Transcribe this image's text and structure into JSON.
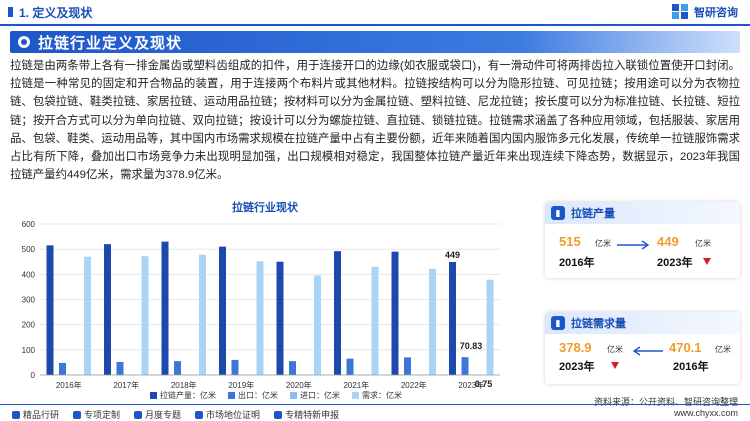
{
  "header": {
    "section_title": "1. 定义及现状",
    "brand": "智研咨询"
  },
  "banner": {
    "title": "拉链行业定义及现状"
  },
  "paragraph": "拉链是由两条带上各有一排金属齿或塑料齿组成的扣件，用于连接开口的边缘(如衣服或袋口)，有一滑动件可将两排齿拉入联锁位置使开口封闭。拉链是一种常见的固定和开合物品的装置，用于连接两个布料片或其他材料。拉链按结构可以分为隐形拉链、可见拉链；按用途可以分为衣物拉链、包袋拉链、鞋类拉链、家居拉链、运动用品拉链；按材料可以分为金属拉链、塑料拉链、尼龙拉链；按长度可以分为标准拉链、长拉链、短拉链；按开合方式可以分为单向拉链、双向拉链；按设计可以分为螺旋拉链、直拉链、锁链拉链。拉链需求涵盖了各种应用领域，包括服装、家居用品、包袋、鞋类、运动用品等，其中国内市场需求规模在拉链产量中占有主要份额，近年来随着国内国内服饰多元化发展，传统单一拉链服饰需求占比有所下降，叠加出口市场竞争力未出现明显加强，出口规模相对稳定，我国整体拉链产量近年来出现连续下降态势，数据显示，2023年我国拉链产量约449亿米，需求量为378.9亿米。",
  "cards": {
    "production": {
      "title": "拉链产量",
      "icon": "bar-chart-icon",
      "left_value": "515",
      "left_unit": "亿米",
      "left_year": "2016年",
      "right_value": "449",
      "right_unit": "亿米",
      "right_year": "2023年"
    },
    "demand": {
      "title": "拉链需求量",
      "icon": "bar-chart-icon",
      "left_value": "378.9",
      "left_unit": "亿米",
      "left_year": "2023年",
      "right_value": "470.1",
      "right_unit": "亿米",
      "right_year": "2016年"
    }
  },
  "footer": {
    "left_items": [
      "精品行研",
      "专项定制",
      "月度专题",
      "市场地位证明",
      "专精特新申报"
    ],
    "right": "www.chyxx.com",
    "source": "资料来源：公开资料、智研咨询整理"
  },
  "colors": {
    "accent": "#1d56c8",
    "production": "#1d48b0",
    "export": "#3f74d8",
    "import": "#8fbdf0",
    "demand": "#a9d4f5",
    "orange": "#f29b2c",
    "up_arrow": "#d71f1f"
  },
  "chart_data": {
    "type": "bar",
    "title": "拉链行业现状",
    "categories": [
      "2016年",
      "2017年",
      "2018年",
      "2019年",
      "2020年",
      "2021年",
      "2022年",
      "2023年"
    ],
    "series": [
      {
        "name": "拉链产量：亿米",
        "values": [
          515,
          520,
          530,
          510,
          450,
          492,
          490,
          449
        ]
      },
      {
        "name": "出口：亿米",
        "values": [
          48,
          52,
          55,
          60,
          55,
          65,
          70,
          70.83
        ]
      },
      {
        "name": "进口：亿米",
        "values": [
          1,
          1,
          1,
          1,
          1,
          1,
          1,
          0.75
        ]
      },
      {
        "name": "需求：亿米",
        "values": [
          470.1,
          472,
          478,
          452,
          395,
          430,
          422,
          378.9
        ]
      }
    ],
    "data_labels": {
      "0": {
        "7": "449"
      },
      "1": {
        "7": "70.83"
      },
      "2": {
        "7": "0.75"
      }
    },
    "ylim": [
      0,
      600
    ],
    "yticks": [
      0,
      100,
      200,
      300,
      400,
      500,
      600
    ],
    "grid": true,
    "legend": "bottom"
  }
}
